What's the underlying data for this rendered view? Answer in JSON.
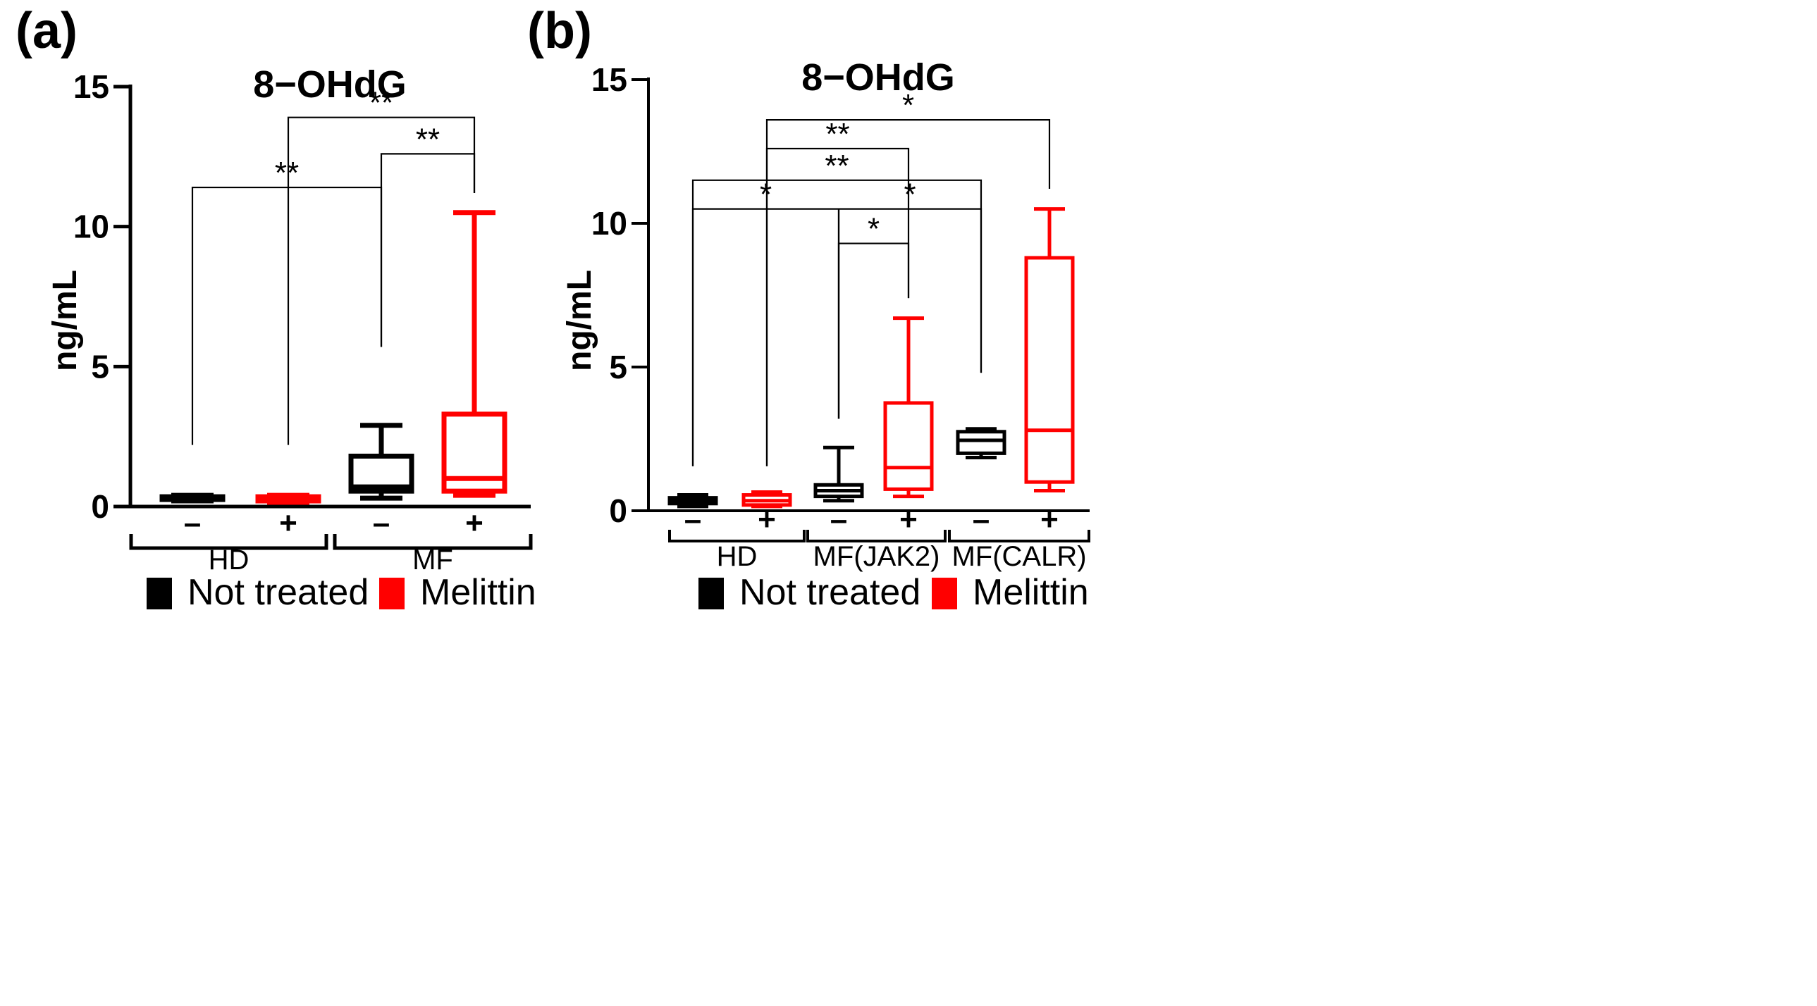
{
  "chart_data": [
    {
      "type": "box",
      "panel_label": "(a)",
      "title": "8−OHdG",
      "ylabel": "ng/mL",
      "ylim": [
        0,
        15
      ],
      "yticks": [
        "0",
        "5",
        "10",
        "15"
      ],
      "legend": [
        {
          "label": "Not treated",
          "color": "#000000"
        },
        {
          "label": "Melittin",
          "color": "#ff0000"
        }
      ],
      "groups": [
        {
          "label": "HD",
          "treatments": [
            "–",
            "+"
          ]
        },
        {
          "label": "MF",
          "treatments": [
            "–",
            "+"
          ]
        }
      ],
      "boxes": [
        {
          "group": "HD",
          "treatment": "–",
          "series": "Not treated",
          "color": "#000000",
          "min": 0.2,
          "q1": 0.25,
          "median": 0.3,
          "q3": 0.35,
          "max": 0.4
        },
        {
          "group": "HD",
          "treatment": "+",
          "series": "Melittin",
          "color": "#ff0000",
          "min": 0.15,
          "q1": 0.2,
          "median": 0.3,
          "q3": 0.35,
          "max": 0.4
        },
        {
          "group": "MF",
          "treatment": "–",
          "series": "Not treated",
          "color": "#000000",
          "min": 0.3,
          "q1": 0.55,
          "median": 0.7,
          "q3": 1.8,
          "max": 2.9
        },
        {
          "group": "MF",
          "treatment": "+",
          "series": "Melittin",
          "color": "#ff0000",
          "min": 0.4,
          "q1": 0.55,
          "median": 1.0,
          "q3": 3.3,
          "max": 10.5
        }
      ],
      "significance": [
        {
          "from_box": 0,
          "to_box": 2,
          "label": "**",
          "bar_y": 11.4,
          "from_drop": 2.2,
          "to_drop": 5.7
        },
        {
          "from_box": 2,
          "to_box": 3,
          "label": "**",
          "bar_y": 12.6,
          "from_drop": 5.7,
          "to_drop": 11.2
        },
        {
          "from_box": 1,
          "to_box": 3,
          "label": "**",
          "bar_y": 13.9,
          "from_drop": 2.2,
          "to_drop": 11.2
        }
      ]
    },
    {
      "type": "box",
      "panel_label": "(b)",
      "title": "8−OHdG",
      "ylabel": "ng/mL",
      "ylim": [
        0,
        15
      ],
      "yticks": [
        "0",
        "5",
        "10",
        "15"
      ],
      "legend": [
        {
          "label": "Not treated",
          "color": "#000000"
        },
        {
          "label": "Melittin",
          "color": "#ff0000"
        }
      ],
      "groups": [
        {
          "label": "HD",
          "treatments": [
            "–",
            "+"
          ]
        },
        {
          "label": "MF(JAK2)",
          "treatments": [
            "–",
            "+"
          ]
        },
        {
          "label": "MF(CALR)",
          "treatments": [
            "–",
            "+"
          ]
        }
      ],
      "boxes": [
        {
          "group": "HD",
          "treatment": "–",
          "series": "Not treated",
          "color": "#000000",
          "min": 0.15,
          "q1": 0.25,
          "median": 0.35,
          "q3": 0.45,
          "max": 0.55
        },
        {
          "group": "HD",
          "treatment": "+",
          "series": "Melittin",
          "color": "#ff0000",
          "min": 0.15,
          "q1": 0.2,
          "median": 0.35,
          "q3": 0.55,
          "max": 0.65
        },
        {
          "group": "MF(JAK2)",
          "treatment": "–",
          "series": "Not treated",
          "color": "#000000",
          "min": 0.35,
          "q1": 0.5,
          "median": 0.7,
          "q3": 0.9,
          "max": 2.2
        },
        {
          "group": "MF(JAK2)",
          "treatment": "+",
          "series": "Melittin",
          "color": "#ff0000",
          "min": 0.5,
          "q1": 0.75,
          "median": 1.5,
          "q3": 3.75,
          "max": 6.7
        },
        {
          "group": "MF(CALR)",
          "treatment": "–",
          "series": "Not treated",
          "color": "#000000",
          "min": 1.85,
          "q1": 2.0,
          "median": 2.45,
          "q3": 2.75,
          "max": 2.85
        },
        {
          "group": "MF(CALR)",
          "treatment": "+",
          "series": "Melittin",
          "color": "#ff0000",
          "min": 0.7,
          "q1": 1.0,
          "median": 2.8,
          "q3": 8.8,
          "max": 10.5
        }
      ],
      "significance": [
        {
          "from_box": 0,
          "to_box": 2,
          "label": "*",
          "bar_y": 10.5,
          "from_drop": 1.55,
          "to_drop": 3.2
        },
        {
          "from_box": 2,
          "to_box": 3,
          "label": "*",
          "bar_y": 9.3,
          "from_drop": 3.2,
          "to_drop": 7.4
        },
        {
          "from_box": 2,
          "to_box": 4,
          "label": "*",
          "bar_y": 10.5,
          "from_drop": 3.2,
          "to_drop": 4.8
        },
        {
          "from_box": 0,
          "to_box": 4,
          "label": "**",
          "bar_y": 11.5,
          "from_drop": 1.55,
          "to_drop": 4.8
        },
        {
          "from_box": 1,
          "to_box": 3,
          "label": "**",
          "bar_y": 12.6,
          "from_drop": 1.55,
          "to_drop": 7.4
        },
        {
          "from_box": 1,
          "to_box": 5,
          "label": "*",
          "bar_y": 13.6,
          "from_drop": 1.55,
          "to_drop": 11.2
        }
      ]
    }
  ]
}
